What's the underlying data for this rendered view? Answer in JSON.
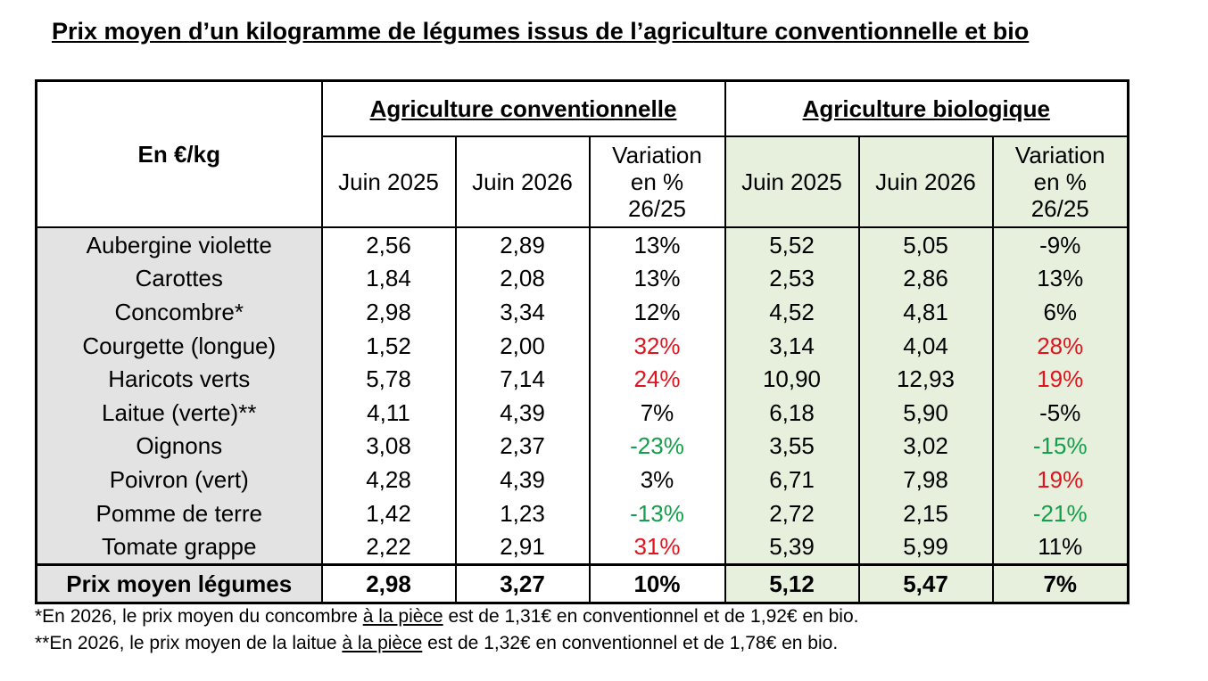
{
  "title": "Prix moyen d’un kilogramme de légumes issus de l’agriculture conventionnelle et bio",
  "table": {
    "unit_label": "En €/kg",
    "group_conventional": "Agriculture conventionnelle",
    "group_bio": "Agriculture biologique",
    "col_2025": "Juin 2025",
    "col_2026": "Juin 2026",
    "col_var_line1": "Variation",
    "col_var_line2": "en %",
    "col_var_line3": "26/25",
    "rows": [
      {
        "name": "Aubergine violette",
        "c25": "2,56",
        "c26": "2,89",
        "cvar": "13%",
        "cvar_color": "black",
        "b25": "5,52",
        "b26": "5,05",
        "bvar": "-9%",
        "bvar_color": "black"
      },
      {
        "name": "Carottes",
        "c25": "1,84",
        "c26": "2,08",
        "cvar": "13%",
        "cvar_color": "black",
        "b25": "2,53",
        "b26": "2,86",
        "bvar": "13%",
        "bvar_color": "black"
      },
      {
        "name": "Concombre*",
        "c25": "2,98",
        "c26": "3,34",
        "cvar": "12%",
        "cvar_color": "black",
        "b25": "4,52",
        "b26": "4,81",
        "bvar": "6%",
        "bvar_color": "black"
      },
      {
        "name": "Courgette (longue)",
        "c25": "1,52",
        "c26": "2,00",
        "cvar": "32%",
        "cvar_color": "red",
        "b25": "3,14",
        "b26": "4,04",
        "bvar": "28%",
        "bvar_color": "red"
      },
      {
        "name": "Haricots verts",
        "c25": "5,78",
        "c26": "7,14",
        "cvar": "24%",
        "cvar_color": "red",
        "b25": "10,90",
        "b26": "12,93",
        "bvar": "19%",
        "bvar_color": "red"
      },
      {
        "name": "Laitue (verte)**",
        "c25": "4,11",
        "c26": "4,39",
        "cvar": "7%",
        "cvar_color": "black",
        "b25": "6,18",
        "b26": "5,90",
        "bvar": "-5%",
        "bvar_color": "black"
      },
      {
        "name": "Oignons",
        "c25": "3,08",
        "c26": "2,37",
        "cvar": "-23%",
        "cvar_color": "green",
        "b25": "3,55",
        "b26": "3,02",
        "bvar": "-15%",
        "bvar_color": "green"
      },
      {
        "name": "Poivron (vert)",
        "c25": "4,28",
        "c26": "4,39",
        "cvar": "3%",
        "cvar_color": "black",
        "b25": "6,71",
        "b26": "7,98",
        "bvar": "19%",
        "bvar_color": "red"
      },
      {
        "name": "Pomme de terre",
        "c25": "1,42",
        "c26": "1,23",
        "cvar": "-13%",
        "cvar_color": "green",
        "b25": "2,72",
        "b26": "2,15",
        "bvar": "-21%",
        "bvar_color": "green"
      },
      {
        "name": "Tomate grappe",
        "c25": "2,22",
        "c26": "2,91",
        "cvar": "31%",
        "cvar_color": "red",
        "b25": "5,39",
        "b26": "5,99",
        "bvar": "11%",
        "bvar_color": "black"
      }
    ],
    "total": {
      "name": "Prix moyen légumes",
      "c25": "2,98",
      "c26": "3,27",
      "cvar": "10%",
      "b25": "5,12",
      "b26": "5,47",
      "bvar": "7%"
    }
  },
  "colors": {
    "red": "#e0141e",
    "green": "#12a04a",
    "bio_bg": "#e6f0dc",
    "name_bg": "#e3e3e3"
  },
  "footnotes": [
    {
      "before": "*En 2026, le prix moyen du concombre ",
      "underlined": "à la pièce",
      "after": " est de 1,31€ en conventionnel et de 1,92€ en bio."
    },
    {
      "before": "**En 2026, le prix moyen de la laitue ",
      "underlined": "à la pièce",
      "after": " est de 1,32€ en conventionnel et de 1,78€ en bio."
    }
  ]
}
